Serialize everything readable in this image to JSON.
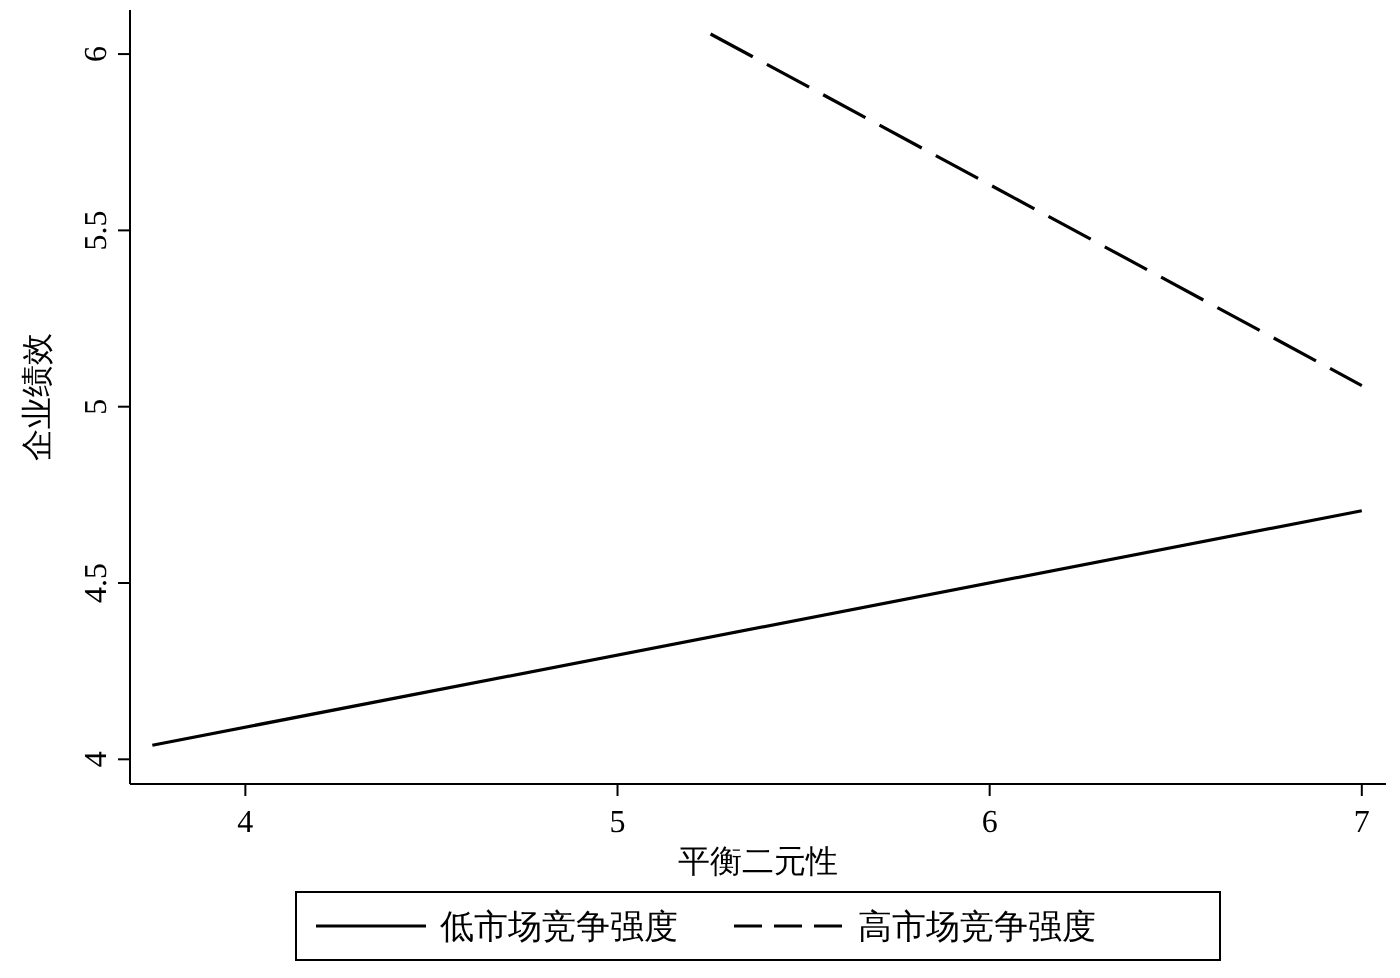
{
  "chart_data": {
    "type": "line",
    "xlabel": "平衡二元性",
    "ylabel": "企业绩效",
    "xlim": [
      3.69,
      7.065
    ],
    "xticks": [
      4,
      5,
      6,
      7
    ],
    "ylim": [
      3.93,
      6.125
    ],
    "yticks": [
      4,
      4.5,
      5,
      5.5,
      6
    ],
    "grid": false,
    "legend": "bottom",
    "marker": "none",
    "series": [
      {
        "name": "低市场竞争强度",
        "color": "#000000",
        "line_style": "solid",
        "x": [
          3.75,
          7
        ],
        "values": [
          4.04,
          4.705
        ]
      },
      {
        "name": "高市场竞争强度",
        "color": "#000000",
        "line_style": "dashed",
        "x": [
          5.25,
          7
        ],
        "values": [
          6.057,
          5.06
        ]
      }
    ]
  }
}
